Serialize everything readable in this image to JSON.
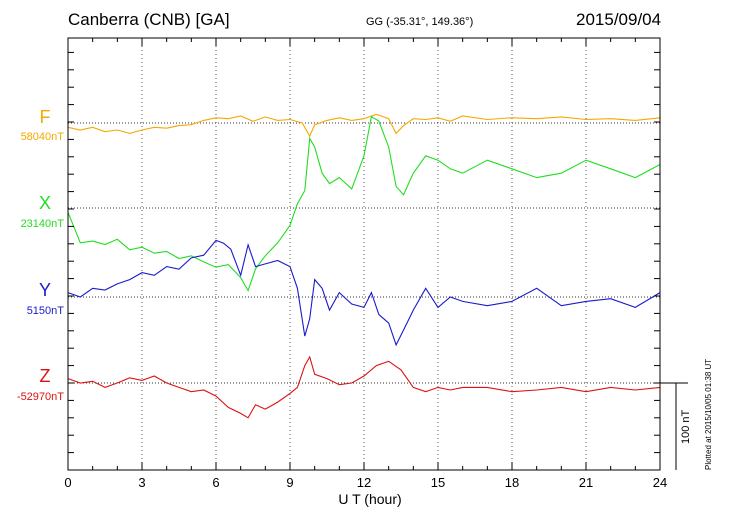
{
  "header": {
    "station": "Canberra (CNB)  [GA]",
    "coords": "GG (-35.31°, 149.36°)",
    "date": "2015/09/04"
  },
  "footer": {
    "plotted": "Plotted at 2015/10/05 01:38 UT",
    "scale": "100 nT"
  },
  "chart_data": {
    "type": "line",
    "title": "Canberra (CNB)  [GA]",
    "xlabel": "U T (hour)",
    "ylabel": "",
    "xlim": [
      0,
      24
    ],
    "x_ticks": [
      0,
      3,
      6,
      9,
      12,
      15,
      18,
      21,
      24
    ],
    "grid": true,
    "scale_bar_nT": 100,
    "units": "nT",
    "series": [
      {
        "name": "F",
        "baseline_label": "58040nT",
        "baseline_nT": 58040,
        "color": "#f5a800",
        "x": [
          0,
          0.5,
          1,
          1.5,
          2,
          2.5,
          3,
          3.5,
          4,
          4.5,
          5,
          5.5,
          6,
          6.5,
          7,
          7.5,
          8,
          8.5,
          9,
          9.5,
          9.8,
          10,
          10.5,
          11,
          11.5,
          12,
          12.5,
          13,
          13.3,
          13.6,
          14,
          14.5,
          15,
          15.5,
          16,
          17,
          18,
          19,
          20,
          21,
          22,
          23,
          24
        ],
        "values": [
          -5,
          -8,
          -5,
          -10,
          -8,
          -12,
          -8,
          -5,
          -6,
          -3,
          -2,
          3,
          6,
          5,
          8,
          2,
          7,
          3,
          4,
          0,
          -15,
          -2,
          3,
          6,
          3,
          5,
          10,
          5,
          -12,
          -3,
          5,
          4,
          6,
          2,
          8,
          4,
          6,
          5,
          7,
          4,
          5,
          3,
          6
        ]
      },
      {
        "name": "X",
        "baseline_label": "23140nT",
        "baseline_nT": 23140,
        "color": "#22dd22",
        "x": [
          0,
          0.5,
          1,
          1.5,
          2,
          2.5,
          3,
          3.5,
          4,
          4.5,
          5,
          5.5,
          6,
          6.5,
          7,
          7.3,
          7.6,
          8,
          8.5,
          9,
          9.3,
          9.6,
          9.8,
          10,
          10.3,
          10.6,
          11,
          11.5,
          12,
          12.3,
          12.6,
          13,
          13.3,
          13.6,
          14,
          14.5,
          15,
          15.5,
          16,
          17,
          18,
          19,
          20,
          21,
          22,
          23,
          24
        ],
        "values": [
          -5,
          -40,
          -38,
          -42,
          -36,
          -48,
          -45,
          -52,
          -50,
          -58,
          -55,
          -62,
          -68,
          -65,
          -80,
          -95,
          -70,
          -55,
          -40,
          -20,
          5,
          20,
          80,
          70,
          40,
          28,
          35,
          22,
          60,
          105,
          100,
          70,
          25,
          15,
          40,
          60,
          55,
          45,
          40,
          55,
          45,
          35,
          40,
          55,
          45,
          35,
          50
        ]
      },
      {
        "name": "Y",
        "baseline_label": "5150nT",
        "baseline_nT": 5150,
        "color": "#1a1acc",
        "x": [
          0,
          0.5,
          1,
          1.5,
          2,
          2.5,
          3,
          3.5,
          4,
          4.5,
          5,
          5.5,
          6,
          6.3,
          6.6,
          7,
          7.3,
          7.6,
          8,
          8.5,
          9,
          9.3,
          9.6,
          9.8,
          10,
          10.3,
          10.6,
          11,
          11.5,
          12,
          12.3,
          12.6,
          13,
          13.3,
          13.6,
          14,
          14.5,
          15,
          15.5,
          16,
          17,
          18,
          19,
          20,
          21,
          22,
          23,
          24
        ],
        "values": [
          5,
          0,
          10,
          8,
          15,
          20,
          28,
          25,
          35,
          32,
          45,
          48,
          65,
          62,
          55,
          25,
          60,
          35,
          38,
          42,
          35,
          10,
          -45,
          -25,
          20,
          10,
          -15,
          5,
          -8,
          -12,
          5,
          -20,
          -30,
          -55,
          -38,
          -15,
          10,
          -12,
          0,
          -5,
          -10,
          -5,
          10,
          -10,
          -5,
          -2,
          -12,
          5
        ]
      },
      {
        "name": "Z",
        "baseline_label": "-52970nT",
        "baseline_nT": -52970,
        "color": "#dd1111",
        "x": [
          0,
          0.5,
          1,
          1.5,
          2,
          2.5,
          3,
          3.5,
          4,
          4.5,
          5,
          5.5,
          6,
          6.5,
          7,
          7.3,
          7.6,
          8,
          8.5,
          9,
          9.3,
          9.6,
          9.8,
          10,
          10.5,
          11,
          11.5,
          12,
          12.5,
          13,
          13.5,
          14,
          14.5,
          15,
          15.5,
          16,
          17,
          18,
          19,
          20,
          21,
          22,
          23,
          24
        ],
        "values": [
          5,
          0,
          2,
          -5,
          0,
          6,
          3,
          8,
          0,
          -5,
          -10,
          -8,
          -15,
          -28,
          -35,
          -40,
          -25,
          -30,
          -22,
          -12,
          -5,
          20,
          30,
          10,
          5,
          -2,
          0,
          8,
          20,
          25,
          15,
          -5,
          -10,
          -5,
          -8,
          -5,
          -5,
          -10,
          -8,
          -5,
          -10,
          -5,
          -8,
          -5
        ]
      }
    ]
  }
}
